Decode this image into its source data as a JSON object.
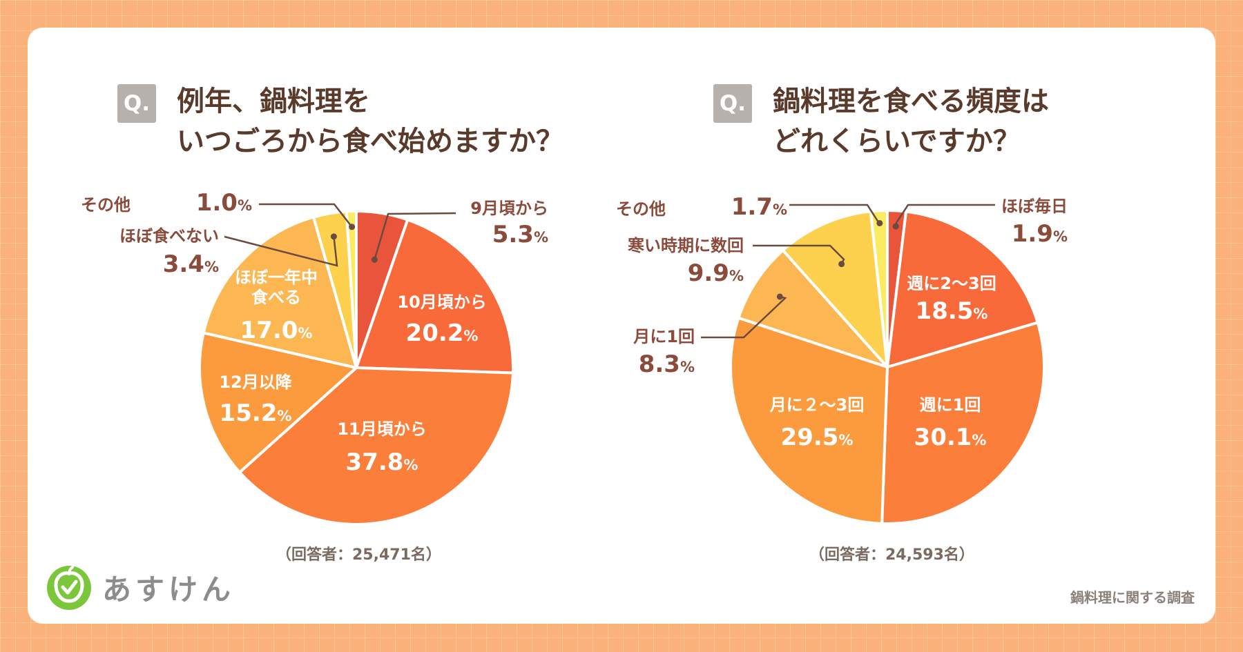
{
  "brand": {
    "name": "あすけん"
  },
  "footer": {
    "note": "鍋料理に関する調査"
  },
  "chart_data": [
    {
      "type": "pie",
      "badge": "Q.",
      "title_line1": "例年、鍋料理を",
      "title_line2": "いつごろから食べ始めますか？",
      "respondents": "（回答者：25,471名）",
      "slices": [
        {
          "label": "9月頃から",
          "value": 5.3,
          "color": "#e9553a"
        },
        {
          "label": "10月頃から",
          "value": 20.2,
          "color": "#f96a3b"
        },
        {
          "label": "11月頃から",
          "value": 37.8,
          "color": "#fb7e3a"
        },
        {
          "label": "12月以降",
          "value": 15.2,
          "color": "#fc9a3e"
        },
        {
          "label": "ほぼ一年中 食べる",
          "value": 17.0,
          "color": "#fcb752"
        },
        {
          "label": "ほぼ食べない",
          "value": 3.4,
          "color": "#fdd14e"
        },
        {
          "label": "その他",
          "value": 1.0,
          "color": "#fbeb60"
        }
      ]
    },
    {
      "type": "pie",
      "badge": "Q.",
      "title_line1": "鍋料理を食べる頻度は",
      "title_line2": "どれくらいですか？",
      "respondents": "（回答者：24,593名）",
      "slices": [
        {
          "label": "ほぼ毎日",
          "value": 1.9,
          "color": "#e9553a"
        },
        {
          "label": "週に2～3回",
          "value": 18.5,
          "color": "#f96a3b"
        },
        {
          "label": "週に1回",
          "value": 30.1,
          "color": "#fb7e3a"
        },
        {
          "label": "月に２～3回",
          "value": 29.5,
          "color": "#fc9a3e"
        },
        {
          "label": "月に1回",
          "value": 8.3,
          "color": "#fcb752"
        },
        {
          "label": "寒い時期に数回",
          "value": 9.9,
          "color": "#fdd14e"
        },
        {
          "label": "その他",
          "value": 1.7,
          "color": "#fbeb60"
        }
      ]
    }
  ]
}
